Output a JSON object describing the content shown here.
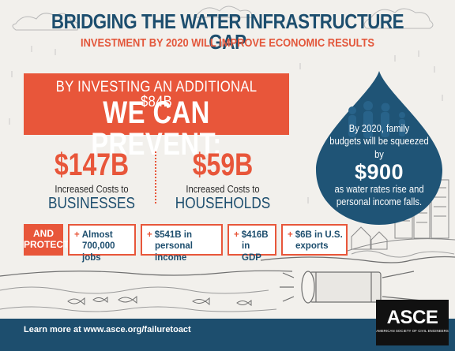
{
  "header": {
    "title": "BRIDGING THE WATER INFRASTRUCTURE GAP",
    "subtitle": "INVESTMENT BY 2020 WILL IMPROVE ECONOMIC RESULTS"
  },
  "banner": {
    "line1": "BY INVESTING AN ADDITIONAL $84B",
    "line2": "WE CAN PREVENT:"
  },
  "stats": [
    {
      "amount": "$147B",
      "sub": "Increased Costs to",
      "big": "BUSINESSES"
    },
    {
      "amount": "$59B",
      "sub": "Increased Costs to",
      "big": "HOUSEHOLDS"
    }
  ],
  "drop": {
    "line1": "By 2020, family",
    "line2": "budgets will be squeezed by",
    "amount": "$900",
    "line3": "as water rates rise and",
    "line4": "personal income falls."
  },
  "protect": {
    "label_line1": "AND",
    "label_line2": "PROTECT:",
    "items": [
      {
        "line1": "Almost",
        "line2": "700,000 jobs"
      },
      {
        "line1": "$541B in",
        "line2": "personal income"
      },
      {
        "line1": "$416B",
        "line2": "in GDP"
      },
      {
        "line1": "$6B in U.S.",
        "line2": "exports"
      }
    ]
  },
  "footer": {
    "text": "Learn more at www.asce.org/failuretoact"
  },
  "logo": {
    "name": "ASCE",
    "tagline": "AMERICAN SOCIETY OF CIVIL ENGINEERS"
  },
  "colors": {
    "navy": "#1d4e6e",
    "orange": "#e8563a",
    "drop": "#1f5476",
    "background": "#f2f0ec"
  }
}
